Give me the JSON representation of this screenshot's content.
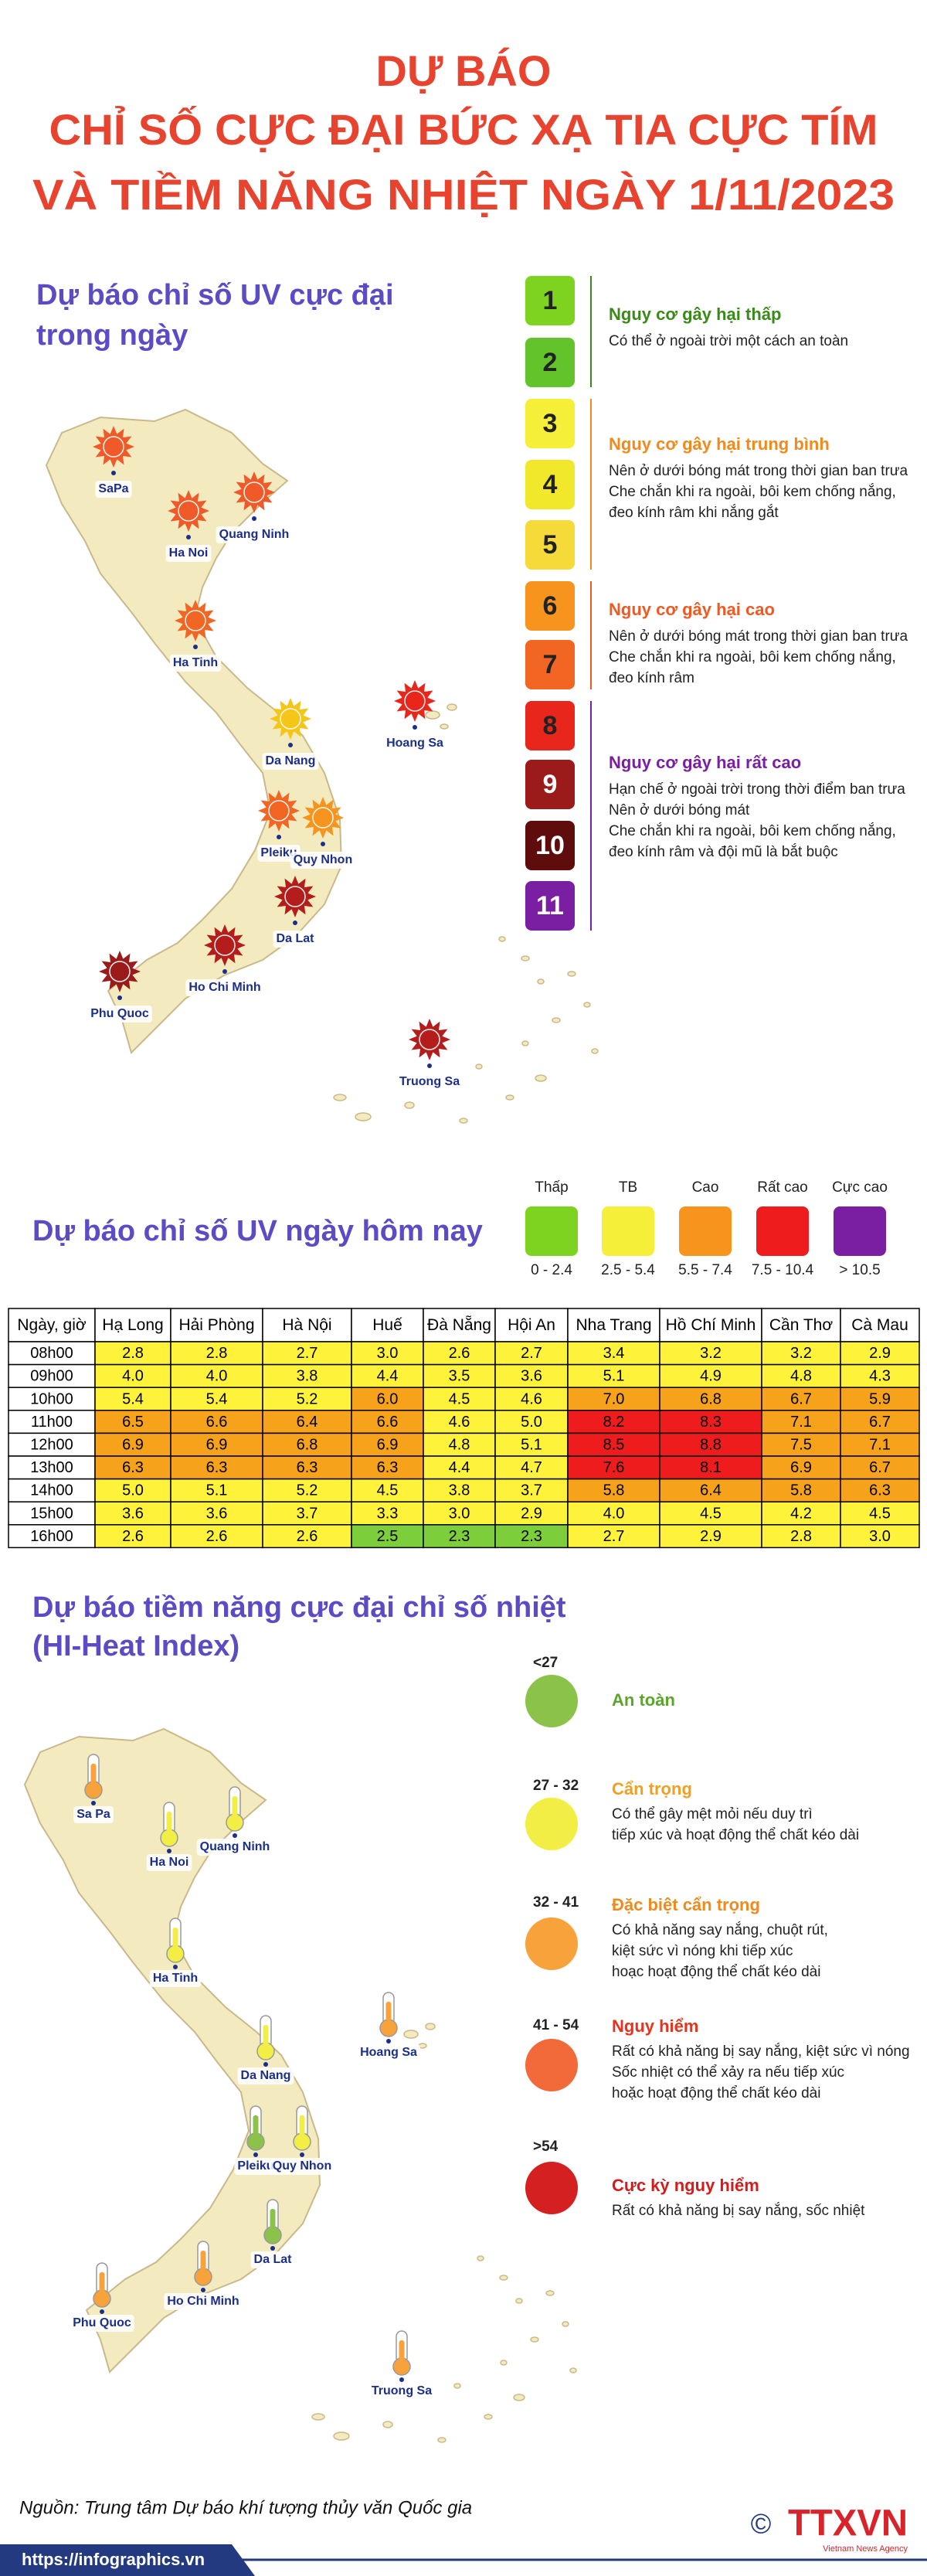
{
  "header": {
    "title_lines": [
      "DỰ BÁO",
      "CHỈ SỐ CỰC ĐẠI BỨC XẠ TIA CỰC TÍM",
      "VÀ TIỀM NĂNG NHIỆT NGÀY 1/11/2023"
    ]
  },
  "uv_max": {
    "title_lines": [
      "Dự báo chỉ số UV cực đại",
      "trong ngày"
    ],
    "scale": [
      {
        "level": 1,
        "color": "#7ed321",
        "text_color": "#222"
      },
      {
        "level": 2,
        "color": "#62c42a",
        "text_color": "#222"
      },
      {
        "level": 3,
        "color": "#f5ef3a",
        "text_color": "#222"
      },
      {
        "level": 4,
        "color": "#f1e82c",
        "text_color": "#222"
      },
      {
        "level": 5,
        "color": "#f5da3a",
        "text_color": "#222"
      },
      {
        "level": 6,
        "color": "#f7941d",
        "text_color": "#222"
      },
      {
        "level": 7,
        "color": "#f26522",
        "text_color": "#222"
      },
      {
        "level": 8,
        "color": "#e8261c",
        "text_color": "#222"
      },
      {
        "level": 9,
        "color": "#9b1b1b",
        "text_color": "#fff"
      },
      {
        "level": 10,
        "color": "#5e0c0c",
        "text_color": "#fff"
      },
      {
        "level": 11,
        "color": "#7b1fa2",
        "text_color": "#fff"
      }
    ],
    "groups": [
      {
        "title": "Nguy cơ gây hại thấp",
        "color": "#3a8a1a",
        "lines": [
          "Có thể ở ngoài trời một cách an toàn"
        ]
      },
      {
        "title": "Nguy cơ gây hại trung bình",
        "color": "#f08a1c",
        "lines": [
          "Nên ở dưới bóng mát trong thời gian ban trưa",
          "Che chắn khi ra ngoài, bôi kem chống nắng,",
          "đeo kính râm khi nắng gắt"
        ]
      },
      {
        "title": "Nguy cơ gây hại cao",
        "color": "#f05a22",
        "lines": [
          "Nên ở dưới bóng mát trong thời gian ban trưa",
          "Che chắn khi ra ngoài, bôi kem chống nắng,",
          "đeo kính râm"
        ]
      },
      {
        "title": "Nguy cơ gây hại rất cao",
        "color": "#7b1fa2",
        "lines": [
          "Hạn chế ở ngoài trời trong thời điểm ban trưa",
          "Nên ở dưới bóng mát",
          "Che chắn khi ra ngoài, bôi kem chống nắng,",
          "đeo kính râm và đội mũ là bắt buộc"
        ]
      }
    ],
    "cities": [
      {
        "name": "SaPa",
        "color": "#f05a28"
      },
      {
        "name": "Ha Noi",
        "color": "#f05a28"
      },
      {
        "name": "Quang Ninh",
        "color": "#f05a28"
      },
      {
        "name": "Ha Tinh",
        "color": "#f26522"
      },
      {
        "name": "Hoang Sa",
        "color": "#e8261c"
      },
      {
        "name": "Da Nang",
        "color": "#f5c518"
      },
      {
        "name": "Pleiku",
        "color": "#f26522"
      },
      {
        "name": "Quy Nhon",
        "color": "#f7941d"
      },
      {
        "name": "Da Lat",
        "color": "#b51c1c"
      },
      {
        "name": "Ho Chi Minh",
        "color": "#b51c1c"
      },
      {
        "name": "Phu Quoc",
        "color": "#9b1b1b"
      },
      {
        "name": "Truong Sa",
        "color": "#b51c1c"
      }
    ]
  },
  "uv_today": {
    "title": "Dự báo chỉ số UV ngày hôm nay",
    "legend": [
      {
        "label": "Thấp",
        "range": "0 - 2.4",
        "color": "#7ed321"
      },
      {
        "label": "TB",
        "range": "2.5 - 5.4",
        "color": "#f5ef3a"
      },
      {
        "label": "Cao",
        "range": "5.5 - 7.4",
        "color": "#f7941d"
      },
      {
        "label": "Rất cao",
        "range": "7.5 - 10.4",
        "color": "#ee1c1c"
      },
      {
        "label": "Cực cao",
        "range": "> 10.5",
        "color": "#7b1fa2"
      }
    ],
    "table": {
      "header": [
        "Ngày, giờ",
        "Hạ Long",
        "Hải Phòng",
        "Hà Nội",
        "Huế",
        "Đà Nẵng",
        "Hội An",
        "Nha Trang",
        "Hồ Chí Minh",
        "Cần Thơ",
        "Cà Mau"
      ],
      "rows": [
        {
          "time": "08h00",
          "cells": [
            "2.8",
            "2.8",
            "2.7",
            "3.0",
            "2.6",
            "2.7",
            "3.4",
            "3.2",
            "3.2",
            "2.9"
          ],
          "fills": [
            "#fff23a",
            "#fff23a",
            "#fff23a",
            "#fff23a",
            "#fff23a",
            "#fff23a",
            "#fff23a",
            "#fff23a",
            "#fff23a",
            "#fff23a"
          ]
        },
        {
          "time": "09h00",
          "cells": [
            "4.0",
            "4.0",
            "3.8",
            "4.4",
            "3.5",
            "3.6",
            "5.1",
            "4.9",
            "4.8",
            "4.3"
          ],
          "fills": [
            "#fff23a",
            "#fff23a",
            "#fff23a",
            "#fff23a",
            "#fff23a",
            "#fff23a",
            "#fff23a",
            "#fff23a",
            "#fff23a",
            "#fff23a"
          ]
        },
        {
          "time": "10h00",
          "cells": [
            "5.4",
            "5.4",
            "5.2",
            "6.0",
            "4.5",
            "4.6",
            "7.0",
            "6.8",
            "6.7",
            "5.9"
          ],
          "fills": [
            "#fff23a",
            "#fff23a",
            "#fff23a",
            "#f7a21b",
            "#fff23a",
            "#fff23a",
            "#f7a21b",
            "#f7a21b",
            "#f7a21b",
            "#f7a21b"
          ]
        },
        {
          "time": "11h00",
          "cells": [
            "6.5",
            "6.6",
            "6.4",
            "6.6",
            "4.6",
            "5.0",
            "8.2",
            "8.3",
            "7.1",
            "6.7"
          ],
          "fills": [
            "#f7a21b",
            "#f7a21b",
            "#f7a21b",
            "#f7a21b",
            "#fff23a",
            "#fff23a",
            "#ee1c1c",
            "#ee1c1c",
            "#f7a21b",
            "#f7a21b"
          ]
        },
        {
          "time": "12h00",
          "cells": [
            "6.9",
            "6.9",
            "6.8",
            "6.9",
            "4.8",
            "5.1",
            "8.5",
            "8.8",
            "7.5",
            "7.1"
          ],
          "fills": [
            "#f7a21b",
            "#f7a21b",
            "#f7a21b",
            "#f7a21b",
            "#fff23a",
            "#fff23a",
            "#ee1c1c",
            "#ee1c1c",
            "#f7a21b",
            "#f7a21b"
          ]
        },
        {
          "time": "13h00",
          "cells": [
            "6.3",
            "6.3",
            "6.3",
            "6.3",
            "4.4",
            "4.7",
            "7.6",
            "8.1",
            "6.9",
            "6.7"
          ],
          "fills": [
            "#f7a21b",
            "#f7a21b",
            "#f7a21b",
            "#f7a21b",
            "#fff23a",
            "#fff23a",
            "#ee1c1c",
            "#ee1c1c",
            "#f7a21b",
            "#f7a21b"
          ]
        },
        {
          "time": "14h00",
          "cells": [
            "5.0",
            "5.1",
            "5.2",
            "4.5",
            "3.8",
            "3.7",
            "5.8",
            "6.4",
            "5.8",
            "6.3"
          ],
          "fills": [
            "#fff23a",
            "#fff23a",
            "#fff23a",
            "#fff23a",
            "#fff23a",
            "#fff23a",
            "#f7a21b",
            "#f7a21b",
            "#f7a21b",
            "#f7a21b"
          ]
        },
        {
          "time": "15h00",
          "cells": [
            "3.6",
            "3.6",
            "3.7",
            "3.3",
            "3.0",
            "2.9",
            "4.0",
            "4.5",
            "4.2",
            "4.5"
          ],
          "fills": [
            "#fff23a",
            "#fff23a",
            "#fff23a",
            "#fff23a",
            "#fff23a",
            "#fff23a",
            "#fff23a",
            "#fff23a",
            "#fff23a",
            "#fff23a"
          ]
        },
        {
          "time": "16h00",
          "cells": [
            "2.6",
            "2.6",
            "2.6",
            "2.5",
            "2.3",
            "2.3",
            "2.7",
            "2.9",
            "2.8",
            "3.0"
          ],
          "fills": [
            "#fff23a",
            "#fff23a",
            "#fff23a",
            "#7ccf3a",
            "#7ccf3a",
            "#7ccf3a",
            "#fff23a",
            "#fff23a",
            "#fff23a",
            "#fff23a"
          ]
        }
      ]
    }
  },
  "heat_index": {
    "title_lines": [
      "Dự báo tiềm năng cực đại chỉ số nhiệt",
      "(HI-Heat Index)"
    ],
    "legend": [
      {
        "range": "<27",
        "title": "An toàn",
        "title_color": "#5aa52a",
        "color": "#8bc34a",
        "lines": []
      },
      {
        "range": "27 - 32",
        "title": "Cẩn trọng",
        "title_color": "#f0a020",
        "color": "#f3ee45",
        "lines": [
          "Có thể gây mệt mỏi nếu duy trì",
          "tiếp xúc và hoạt động thể chất kéo dài"
        ]
      },
      {
        "range": "32 - 41",
        "title": "Đặc biệt cẩn trọng",
        "title_color": "#f08a1c",
        "color": "#f7a23a",
        "lines": [
          "Có khả năng say nắng, chuột rút,",
          "kiệt sức vì nóng khi tiếp xúc",
          "hoạc hoạt động thể chất kéo dài"
        ]
      },
      {
        "range": "41 - 54",
        "title": "Nguy hiểm",
        "title_color": "#e8321c",
        "color": "#f26a3a",
        "lines": [
          "Rất có khả năng bị say nắng, kiệt sức vì nóng",
          "Sốc nhiệt có thể xảy ra nếu tiếp xúc",
          "hoặc hoạt động thể chất kéo dài"
        ]
      },
      {
        "range": ">54",
        "title": "Cực kỳ nguy hiểm",
        "title_color": "#d41c1c",
        "color": "#d42020",
        "lines": [
          "Rất có khả năng bị say nắng, sốc nhiệt"
        ]
      }
    ],
    "cities": [
      {
        "name": "Sa Pa",
        "color": "#f7a23a"
      },
      {
        "name": "Ha Noi",
        "color": "#f3ee45"
      },
      {
        "name": "Quang Ninh",
        "color": "#f3ee45"
      },
      {
        "name": "Ha Tinh",
        "color": "#f3ee45"
      },
      {
        "name": "Hoang Sa",
        "color": "#f7a23a"
      },
      {
        "name": "Da Nang",
        "color": "#f3ee45"
      },
      {
        "name": "Pleiku",
        "color": "#8bc34a"
      },
      {
        "name": "Quy Nhon",
        "color": "#f3ee45"
      },
      {
        "name": "Da Lat",
        "color": "#8bc34a"
      },
      {
        "name": "Ho Chi Minh",
        "color": "#f7a23a"
      },
      {
        "name": "Phu Quoc",
        "color": "#f7a23a"
      },
      {
        "name": "Truong Sa",
        "color": "#f7a23a"
      }
    ]
  },
  "footer": {
    "source": "Nguồn: Trung tâm Dự báo khí tượng thủy văn Quốc gia",
    "url": "https://infographics.vn",
    "copyright": "©",
    "logo": "TTXVN",
    "logo_sub": "Vietnam News Agency"
  }
}
